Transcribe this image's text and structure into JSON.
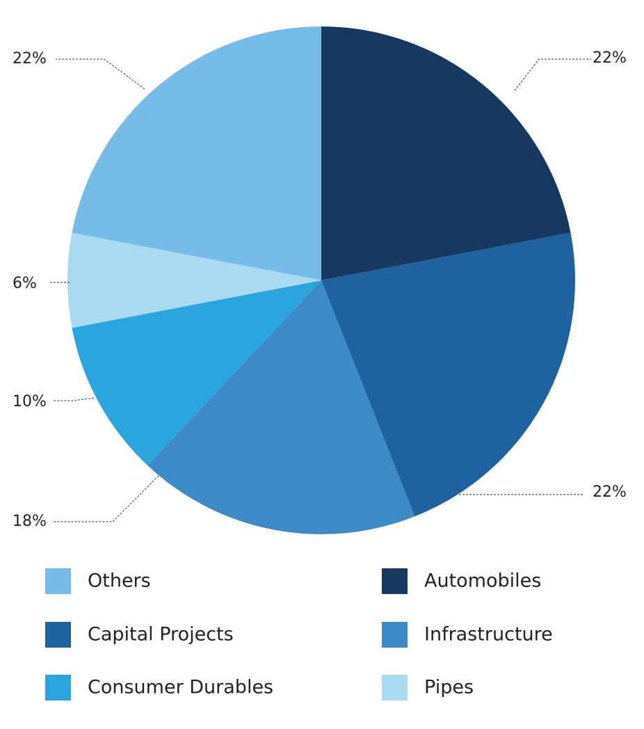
{
  "chart_data": {
    "type": "pie",
    "categories": [
      "Automobiles",
      "Capital Projects",
      "Infrastructure",
      "Consumer Durables",
      "Pipes",
      "Others"
    ],
    "values": [
      22,
      22,
      18,
      10,
      6,
      22
    ],
    "value_labels": [
      "22%",
      "22%",
      "18%",
      "10%",
      "6%",
      "22%"
    ],
    "colors": [
      "#17395f",
      "#1e63a0",
      "#3d8ac9",
      "#2ba5de",
      "#a9daf0",
      "#75bce8"
    ]
  }
}
